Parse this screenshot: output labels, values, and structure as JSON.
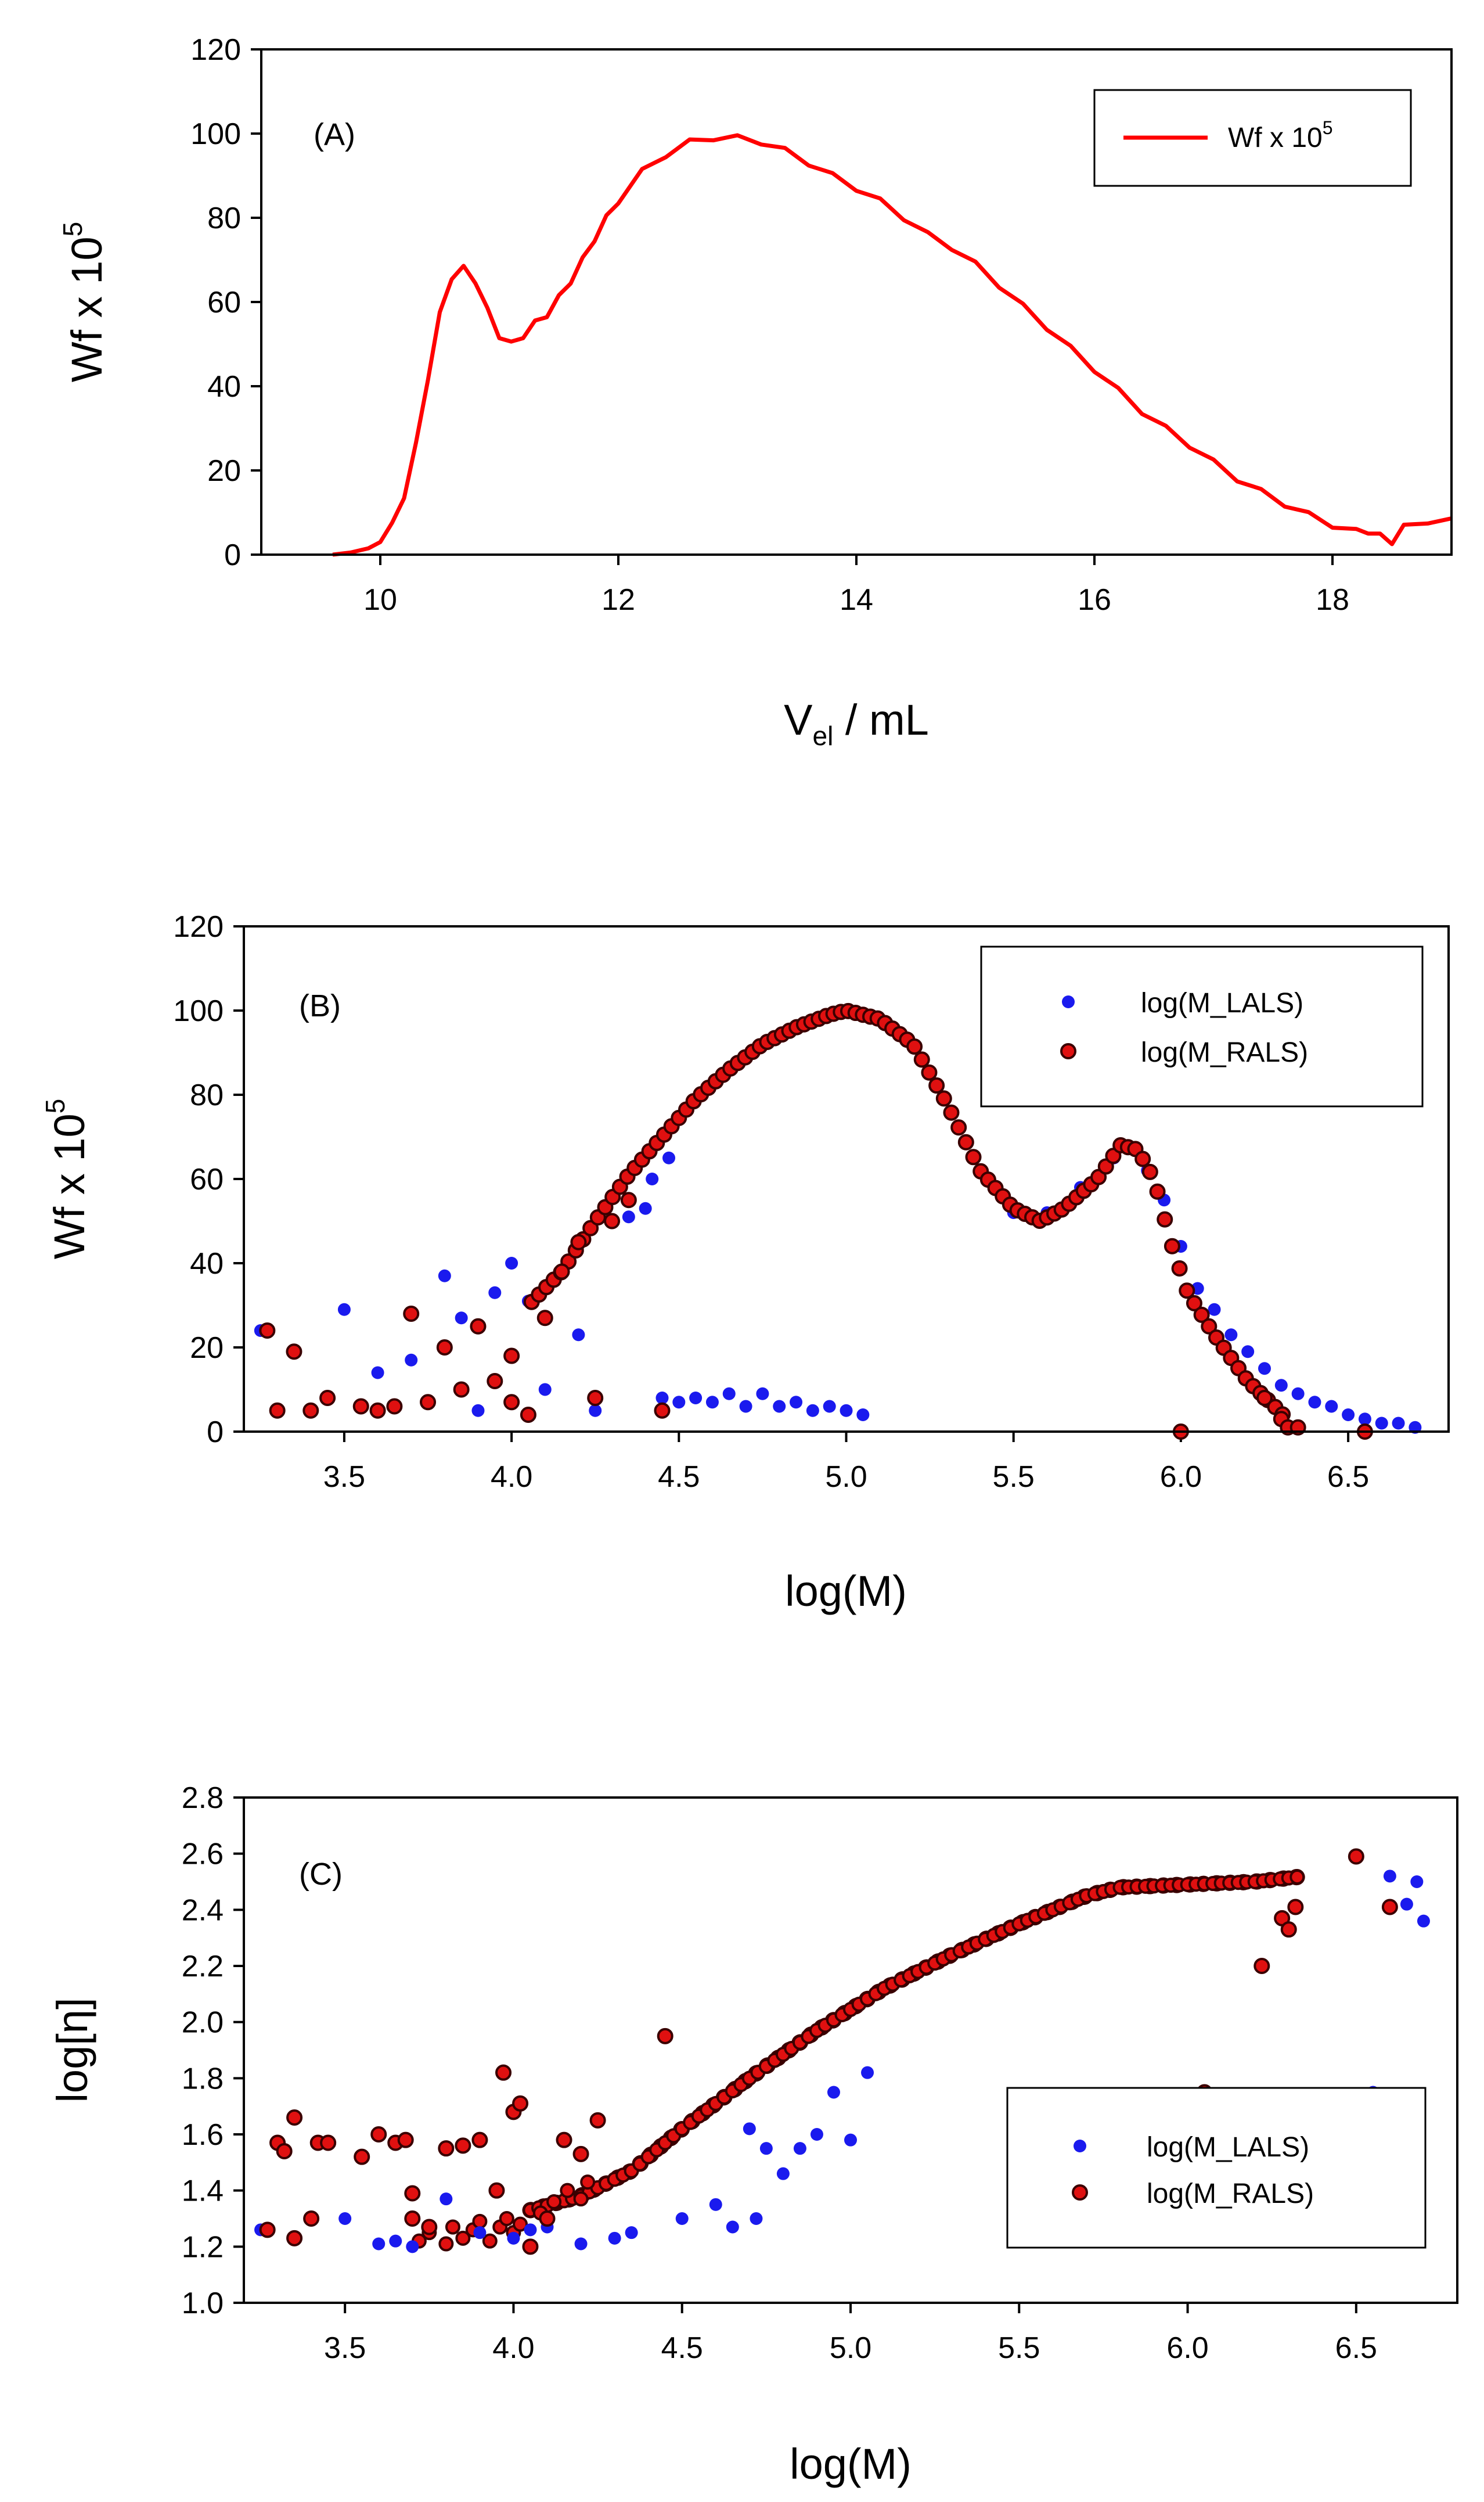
{
  "colors": {
    "line": "#ff0000",
    "lals": "#1a1aee",
    "rals": "#e01010",
    "rals_edge": "#3a0000"
  },
  "chart_data": [
    {
      "id": "A",
      "type": "line",
      "panel_label": "(A)",
      "xlabel_main": "V",
      "xlabel_sub": "el",
      "xlabel_tail": " / mL",
      "ylabel_main": "Wf x 10",
      "ylabel_sup": "5",
      "xlim": [
        9,
        19
      ],
      "ylim": [
        0,
        120
      ],
      "xticks": [
        10,
        12,
        14,
        16,
        18
      ],
      "yticks": [
        0,
        20,
        40,
        60,
        80,
        100,
        120
      ],
      "xtick_labels": [
        "10",
        "12",
        "14",
        "16",
        "18"
      ],
      "ytick_labels": [
        "0",
        "20",
        "40",
        "60",
        "80",
        "100",
        "120"
      ],
      "legend": {
        "position": "top-right",
        "entries": [
          {
            "label": "Wf x 10",
            "sup": "5",
            "marker": "line"
          }
        ]
      },
      "series": [
        {
          "name": "Wf x 10^5",
          "x": [
            9.6,
            9.75,
            9.9,
            10.0,
            10.1,
            10.2,
            10.3,
            10.4,
            10.5,
            10.6,
            10.7,
            10.8,
            10.9,
            11.0,
            11.1,
            11.2,
            11.3,
            11.4,
            11.5,
            11.6,
            11.7,
            11.8,
            11.9,
            12.0,
            12.2,
            12.4,
            12.6,
            12.8,
            13.0,
            13.2,
            13.4,
            13.6,
            13.8,
            14.0,
            14.2,
            14.4,
            14.6,
            14.8,
            15.0,
            15.2,
            15.4,
            15.6,
            15.8,
            16.0,
            16.2,
            16.4,
            16.6,
            16.8,
            17.0,
            17.2,
            17.4,
            17.6,
            17.8,
            18.0,
            18.2,
            18.3,
            18.4,
            18.5,
            18.6,
            18.8,
            19.0
          ],
          "y": [
            0,
            0.5,
            1.5,
            3,
            7,
            14,
            26,
            42,
            57,
            66,
            68,
            65,
            58,
            52,
            50,
            52,
            55,
            57,
            61,
            65,
            70,
            75,
            80,
            84,
            91,
            95,
            98,
            99,
            99,
            98,
            96,
            93,
            90,
            87,
            84,
            80,
            76,
            73,
            69,
            64,
            59,
            54,
            49,
            44,
            39,
            34,
            30,
            26,
            22,
            18,
            15,
            12,
            9.5,
            7,
            5.5,
            5,
            5,
            2.5,
            6.5,
            8,
            8
          ]
        }
      ]
    },
    {
      "id": "B",
      "type": "scatter",
      "panel_label": "(B)",
      "xlabel": "log(M)",
      "ylabel_main": "Wf x 10",
      "ylabel_sup": "5",
      "xlim": [
        3.2,
        6.8
      ],
      "ylim": [
        0,
        120
      ],
      "xticks": [
        3.5,
        4.0,
        4.5,
        5.0,
        5.5,
        6.0,
        6.5
      ],
      "yticks": [
        0,
        20,
        40,
        60,
        80,
        100,
        120
      ],
      "xtick_labels": [
        "3.5",
        "4.0",
        "4.5",
        "5.0",
        "5.5",
        "6.0",
        "6.5"
      ],
      "ytick_labels": [
        "0",
        "20",
        "40",
        "60",
        "80",
        "100",
        "120"
      ],
      "legend": {
        "position": "top-right",
        "entries": [
          {
            "label": "log(M_LALS)",
            "marker": "lals"
          },
          {
            "label": "log(M_RALS)",
            "marker": "rals"
          }
        ]
      },
      "series": [
        {
          "name": "log(M_LALS)",
          "points": [
            [
              3.25,
              24
            ],
            [
              3.3,
              5
            ],
            [
              3.5,
              29
            ],
            [
              3.6,
              14
            ],
            [
              3.7,
              17
            ],
            [
              3.8,
              37
            ],
            [
              3.85,
              27
            ],
            [
              3.9,
              5
            ],
            [
              3.95,
              33
            ],
            [
              4.0,
              40
            ],
            [
              4.05,
              31
            ],
            [
              4.1,
              10
            ],
            [
              4.2,
              23
            ],
            [
              4.25,
              5
            ],
            [
              4.3,
              56
            ],
            [
              4.35,
              51
            ],
            [
              4.4,
              53
            ],
            [
              4.42,
              60
            ],
            [
              4.47,
              65
            ],
            [
              4.45,
              8
            ],
            [
              4.5,
              7
            ],
            [
              4.55,
              8
            ],
            [
              4.6,
              7
            ],
            [
              4.65,
              9
            ],
            [
              4.7,
              6
            ],
            [
              4.75,
              9
            ],
            [
              4.8,
              6
            ],
            [
              4.85,
              7
            ],
            [
              4.9,
              5
            ],
            [
              4.95,
              6
            ],
            [
              5.0,
              5
            ],
            [
              5.05,
              4
            ],
            [
              5.5,
              52
            ],
            [
              5.6,
              52
            ],
            [
              5.7,
              58
            ],
            [
              5.8,
              65
            ],
            [
              5.9,
              62
            ],
            [
              5.95,
              55
            ],
            [
              6.0,
              44
            ],
            [
              6.05,
              34
            ],
            [
              6.1,
              29
            ],
            [
              6.15,
              23
            ],
            [
              6.2,
              19
            ],
            [
              6.25,
              15
            ],
            [
              6.3,
              11
            ],
            [
              6.35,
              9
            ],
            [
              6.4,
              7
            ],
            [
              6.45,
              6
            ],
            [
              6.5,
              4
            ],
            [
              6.55,
              3
            ],
            [
              6.6,
              2
            ],
            [
              6.65,
              2
            ],
            [
              6.7,
              1
            ]
          ]
        },
        {
          "name": "log(M_RALS)",
          "points": [
            [
              3.27,
              24
            ],
            [
              3.3,
              5
            ],
            [
              3.35,
              19
            ],
            [
              3.4,
              5
            ],
            [
              3.45,
              8
            ],
            [
              3.55,
              6
            ],
            [
              3.6,
              5
            ],
            [
              3.65,
              6
            ],
            [
              3.7,
              28
            ],
            [
              3.75,
              7
            ],
            [
              3.8,
              20
            ],
            [
              3.85,
              10
            ],
            [
              3.9,
              25
            ],
            [
              3.95,
              12
            ],
            [
              4.0,
              18
            ],
            [
              4.0,
              7
            ],
            [
              4.05,
              4
            ],
            [
              4.1,
              27
            ],
            [
              4.15,
              38
            ],
            [
              4.2,
              45
            ],
            [
              4.25,
              8
            ],
            [
              4.3,
              50
            ],
            [
              4.35,
              55
            ],
            [
              4.45,
              5
            ],
            [
              6.0,
              0
            ],
            [
              6.25,
              8
            ],
            [
              6.3,
              3
            ],
            [
              6.32,
              1
            ],
            [
              6.35,
              1
            ],
            [
              6.55,
              0
            ]
          ]
        }
      ]
    },
    {
      "id": "C",
      "type": "scatter",
      "panel_label": "(C)",
      "xlabel": "log(M)",
      "ylabel": "log[η]",
      "xlim": [
        3.2,
        6.8
      ],
      "ylim": [
        1.0,
        2.8
      ],
      "xticks": [
        3.5,
        4.0,
        4.5,
        5.0,
        5.5,
        6.0,
        6.5
      ],
      "yticks": [
        1.0,
        1.2,
        1.4,
        1.6,
        1.8,
        2.0,
        2.2,
        2.4,
        2.6,
        2.8
      ],
      "xtick_labels": [
        "3.5",
        "4.0",
        "4.5",
        "5.0",
        "5.5",
        "6.0",
        "6.5"
      ],
      "ytick_labels": [
        "1.0",
        "1.2",
        "1.4",
        "1.6",
        "1.8",
        "2.0",
        "2.2",
        "2.4",
        "2.6",
        "2.8"
      ],
      "legend": {
        "position": "lower-right",
        "entries": [
          {
            "label": "log(M_LALS)",
            "marker": "lals"
          },
          {
            "label": "log(M_RALS)",
            "marker": "rals"
          }
        ]
      },
      "series": [
        {
          "name": "log(M_LALS)",
          "points": [
            [
              3.25,
              1.26
            ],
            [
              3.5,
              1.3
            ],
            [
              3.6,
              1.21
            ],
            [
              3.65,
              1.22
            ],
            [
              3.7,
              1.2
            ],
            [
              3.8,
              1.37
            ],
            [
              3.9,
              1.25
            ],
            [
              4.0,
              1.23
            ],
            [
              4.05,
              1.26
            ],
            [
              4.1,
              1.27
            ],
            [
              4.2,
              1.21
            ],
            [
              4.3,
              1.23
            ],
            [
              4.35,
              1.25
            ],
            [
              4.5,
              1.3
            ],
            [
              4.6,
              1.35
            ],
            [
              4.65,
              1.27
            ],
            [
              4.7,
              1.62
            ],
            [
              4.72,
              1.3
            ],
            [
              4.75,
              1.55
            ],
            [
              4.8,
              1.46
            ],
            [
              4.85,
              1.55
            ],
            [
              4.9,
              1.6
            ],
            [
              4.95,
              1.75
            ],
            [
              5.0,
              1.58
            ],
            [
              5.05,
              1.82
            ],
            [
              6.55,
              1.75
            ],
            [
              6.6,
              2.52
            ],
            [
              6.65,
              2.42
            ],
            [
              6.68,
              2.5
            ],
            [
              6.7,
              2.36
            ]
          ]
        },
        {
          "name": "log(M_RALS)",
          "points": [
            [
              3.27,
              1.26
            ],
            [
              3.3,
              1.57
            ],
            [
              3.32,
              1.54
            ],
            [
              3.35,
              1.66
            ],
            [
              3.35,
              1.23
            ],
            [
              3.4,
              1.3
            ],
            [
              3.42,
              1.57
            ],
            [
              3.45,
              1.57
            ],
            [
              3.55,
              1.52
            ],
            [
              3.6,
              1.6
            ],
            [
              3.65,
              1.57
            ],
            [
              3.68,
              1.58
            ],
            [
              3.7,
              1.39
            ],
            [
              3.7,
              1.3
            ],
            [
              3.75,
              1.27
            ],
            [
              3.8,
              1.55
            ],
            [
              3.85,
              1.56
            ],
            [
              3.9,
              1.58
            ],
            [
              3.95,
              1.4
            ],
            [
              3.97,
              1.82
            ],
            [
              4.0,
              1.68
            ],
            [
              4.02,
              1.71
            ],
            [
              4.05,
              1.2
            ],
            [
              4.1,
              1.3
            ],
            [
              4.15,
              1.58
            ],
            [
              4.2,
              1.53
            ],
            [
              4.25,
              1.65
            ],
            [
              4.45,
              1.95
            ],
            [
              6.05,
              1.75
            ],
            [
              6.22,
              2.2
            ],
            [
              6.28,
              2.37
            ],
            [
              6.3,
              2.33
            ],
            [
              6.32,
              2.41
            ],
            [
              6.5,
              2.59
            ],
            [
              6.6,
              2.41
            ]
          ]
        }
      ]
    }
  ]
}
